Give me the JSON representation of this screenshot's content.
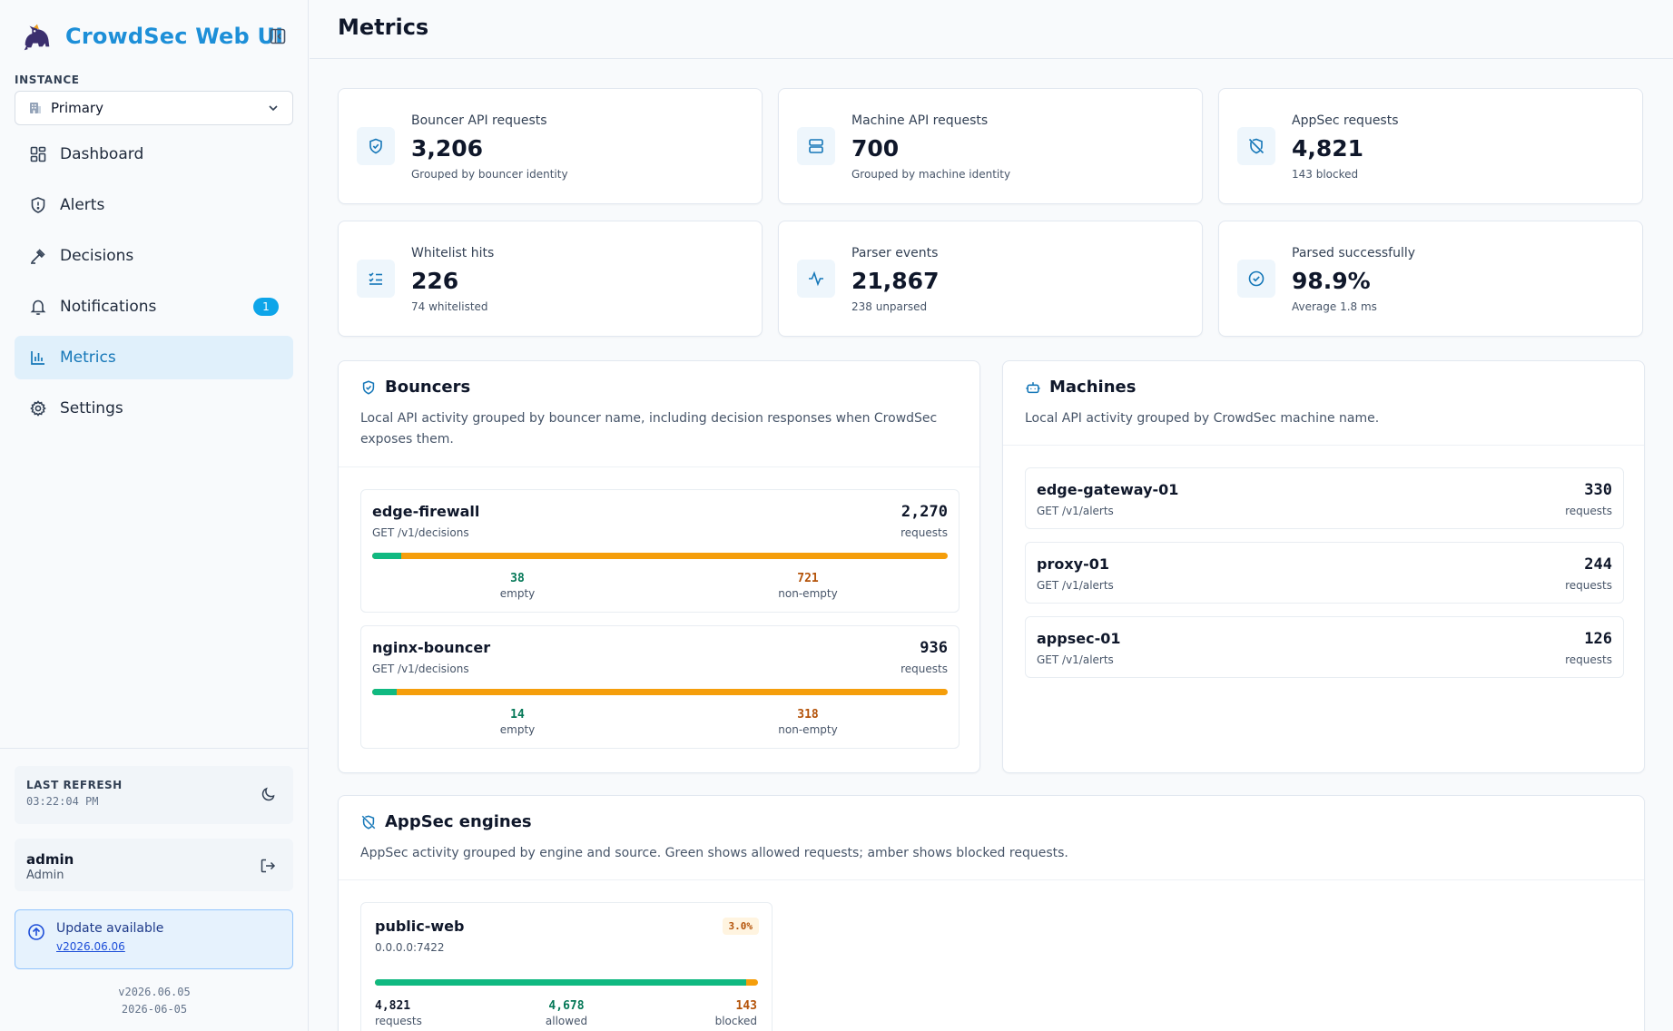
{
  "app": {
    "title": "CrowdSec Web UI"
  },
  "instance": {
    "label": "INSTANCE",
    "selected": "Primary"
  },
  "nav": [
    {
      "label": "Dashboard",
      "icon": "dashboard-icon"
    },
    {
      "label": "Alerts",
      "icon": "shield-alert-icon"
    },
    {
      "label": "Decisions",
      "icon": "gavel-icon"
    },
    {
      "label": "Notifications",
      "icon": "bell-icon",
      "badge": "1"
    },
    {
      "label": "Metrics",
      "icon": "bar-chart-icon",
      "active": true
    },
    {
      "label": "Settings",
      "icon": "gear-icon"
    }
  ],
  "sidebar_footer": {
    "refresh_label": "LAST REFRESH",
    "refresh_time": "03:22:04 PM",
    "user_name": "admin",
    "user_role": "Admin",
    "update_title": "Update available",
    "update_version": "v2026.06.06",
    "current_version": "v2026.06.05",
    "build_date": "2026-06-05"
  },
  "page": {
    "title": "Metrics"
  },
  "stats": [
    {
      "label": "Bouncer API requests",
      "value": "3,206",
      "sub": "Grouped by bouncer identity",
      "icon": "shield-check-icon"
    },
    {
      "label": "Machine API requests",
      "value": "700",
      "sub": "Grouped by machine identity",
      "icon": "server-icon"
    },
    {
      "label": "AppSec requests",
      "value": "4,821",
      "sub": "143 blocked",
      "icon": "shield-off-icon"
    },
    {
      "label": "Whitelist hits",
      "value": "226",
      "sub": "74 whitelisted",
      "icon": "list-checks-icon"
    },
    {
      "label": "Parser events",
      "value": "21,867",
      "sub": "238 unparsed",
      "icon": "activity-icon"
    },
    {
      "label": "Parsed successfully",
      "value": "98.9%",
      "sub": "Average 1.8 ms",
      "icon": "check-circle-icon"
    }
  ],
  "bouncers": {
    "title": "Bouncers",
    "description": "Local API activity grouped by bouncer name, including decision responses when CrowdSec exposes them.",
    "items": [
      {
        "name": "edge-firewall",
        "route": "GET /v1/decisions",
        "requests": "2,270",
        "unit": "requests",
        "empty": "38",
        "non_empty": "721",
        "empty_label": "empty",
        "non_empty_label": "non-empty",
        "empty_fraction": 0.05
      },
      {
        "name": "nginx-bouncer",
        "route": "GET /v1/decisions",
        "requests": "936",
        "unit": "requests",
        "empty": "14",
        "non_empty": "318",
        "empty_label": "empty",
        "non_empty_label": "non-empty",
        "empty_fraction": 0.042
      }
    ]
  },
  "machines": {
    "title": "Machines",
    "description": "Local API activity grouped by CrowdSec machine name.",
    "items": [
      {
        "name": "edge-gateway-01",
        "route": "GET /v1/alerts",
        "requests": "330",
        "unit": "requests"
      },
      {
        "name": "proxy-01",
        "route": "GET /v1/alerts",
        "requests": "244",
        "unit": "requests"
      },
      {
        "name": "appsec-01",
        "route": "GET /v1/alerts",
        "requests": "126",
        "unit": "requests"
      }
    ]
  },
  "appsec": {
    "title": "AppSec engines",
    "description": "AppSec activity grouped by engine and source. Green shows allowed requests; amber shows blocked requests.",
    "items": [
      {
        "name": "public-web",
        "source": "0.0.0.0:7422",
        "percent": "3.0%",
        "requests": "4,821",
        "allowed": "4,678",
        "blocked": "143",
        "requests_label": "requests",
        "allowed_label": "allowed",
        "blocked_label": "blocked",
        "allowed_fraction": 0.97
      }
    ]
  },
  "colors": {
    "accent": "#1d8fd8",
    "allowed": "#10b981",
    "blocked": "#f59e0b"
  }
}
